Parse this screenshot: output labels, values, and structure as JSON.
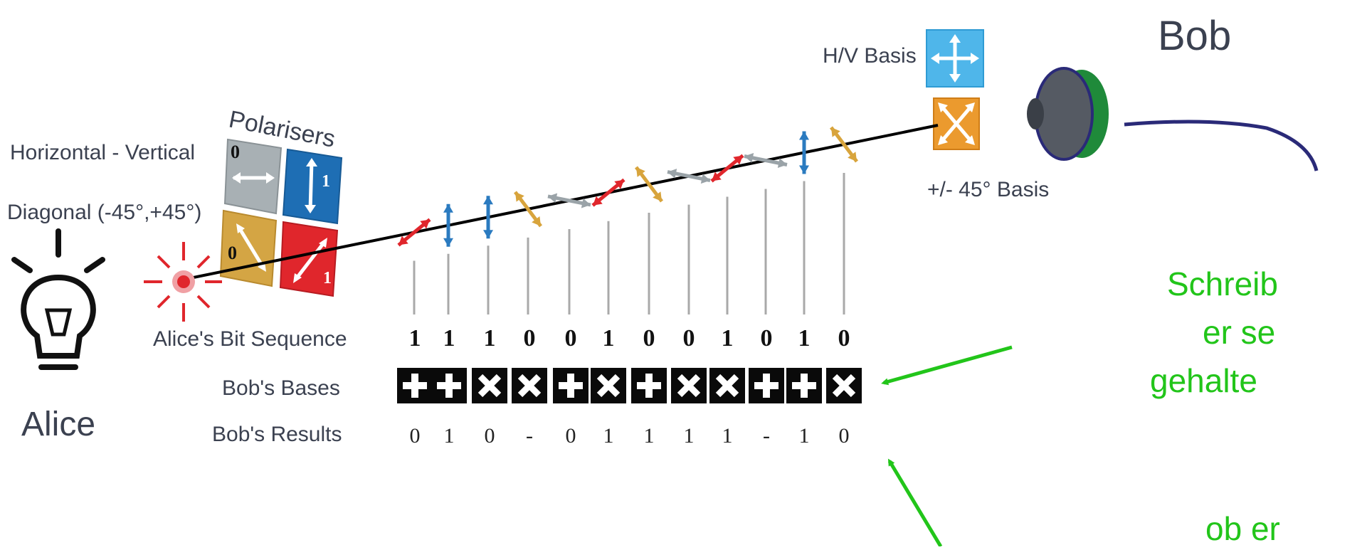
{
  "labels": {
    "bob": "Bob",
    "alice": "Alice",
    "hv_basis": "H/V Basis",
    "pm45_basis": "+/- 45° Basis",
    "polarisers": "Polarisers",
    "horizontal_vertical": "Horizontal - Vertical",
    "diagonal": "Diagonal (-45°,+45°)",
    "alice_bit_sequence": "Alice's Bit Sequence",
    "bobs_bases": "Bob's Bases",
    "bobs_results": "Bob's Results"
  },
  "polariser_values": {
    "gray": "0",
    "blue": "1",
    "yellow": "0",
    "red": "1"
  },
  "notes": {
    "line1": "Schreib",
    "line2": "er se",
    "line3": "gehalte",
    "line4": "ob er"
  },
  "photon_colors": [
    "red",
    "blue",
    "blue",
    "yellow",
    "gray",
    "red",
    "yellow",
    "gray",
    "red",
    "gray",
    "blue",
    "yellow"
  ],
  "alice_bits": [
    "1",
    "1",
    "1",
    "0",
    "0",
    "1",
    "0",
    "0",
    "1",
    "0",
    "1",
    "0"
  ],
  "bob_bases": [
    "+",
    "+",
    "×",
    "×",
    "+",
    "×",
    "+",
    "×",
    "×",
    "+",
    "+",
    "×"
  ],
  "bob_results": [
    "0",
    "1",
    "0",
    "-",
    "0",
    "1",
    "1",
    "1",
    "1",
    "-",
    "1",
    "0"
  ],
  "colors": {
    "red": "#e0262c",
    "blue": "#2b7bc0",
    "yellow": "#d8a43c",
    "gray": "#9aa3a8",
    "green": "#22c51a",
    "navy": "#2a2a78"
  }
}
